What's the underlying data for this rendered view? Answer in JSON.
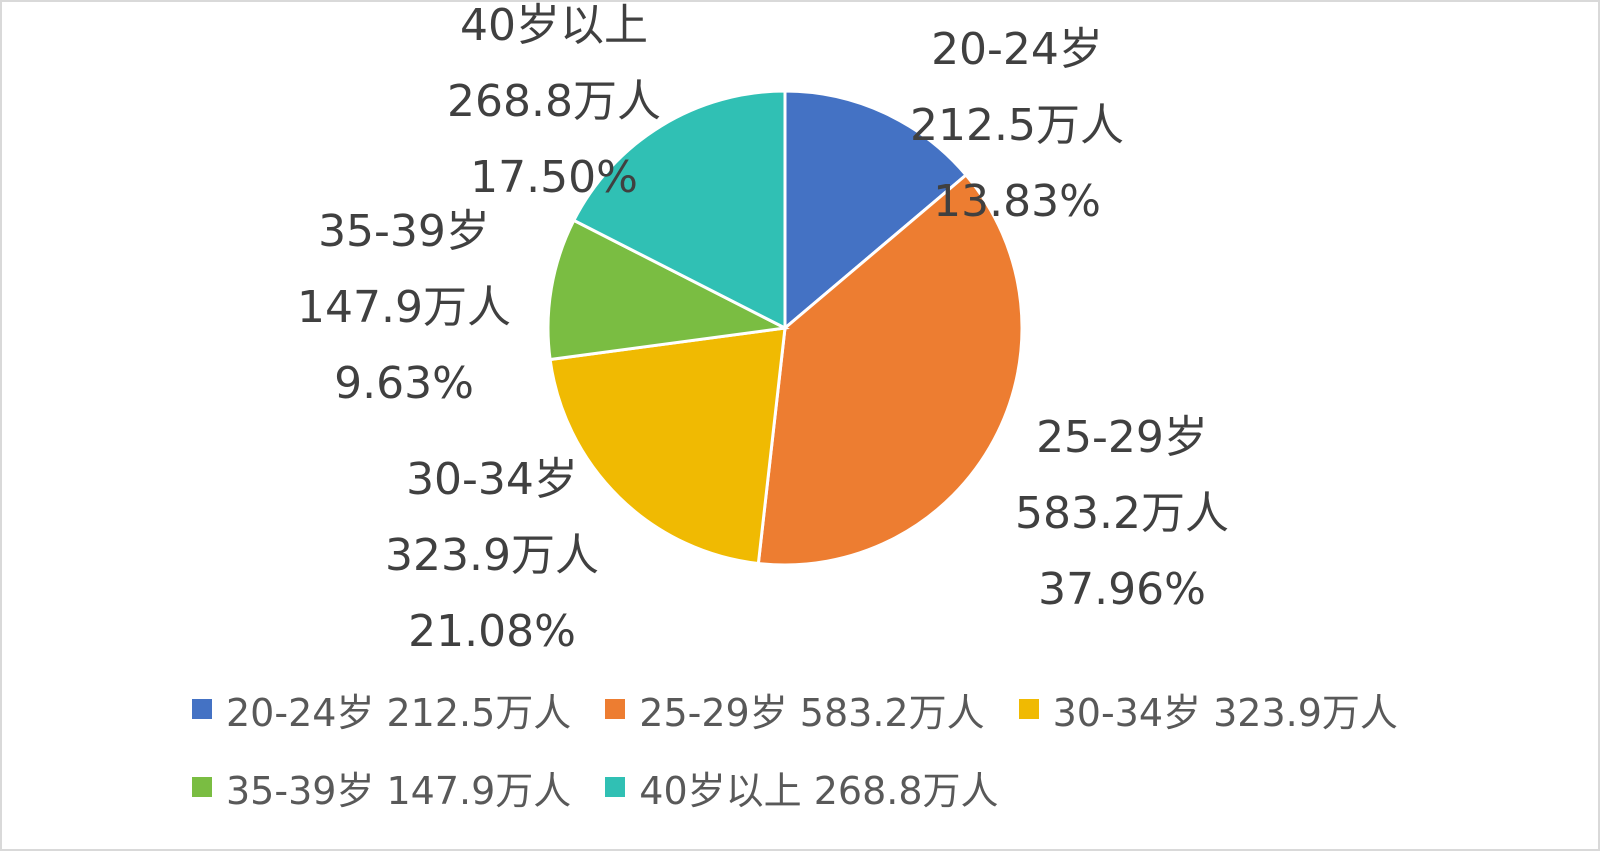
{
  "chart_data": {
    "type": "pie",
    "title": "",
    "unit": "万人",
    "slices": [
      {
        "category": "20-24岁",
        "value": 212.5,
        "value_label": "212.5万人",
        "percent_label": "13.83%",
        "legend": "20-24岁 212.5万人",
        "color": "#4472C4"
      },
      {
        "category": "25-29岁",
        "value": 583.2,
        "value_label": "583.2万人",
        "percent_label": "37.96%",
        "legend": "25-29岁 583.2万人",
        "color": "#ED7D31"
      },
      {
        "category": "30-34岁",
        "value": 323.9,
        "value_label": "323.9万人",
        "percent_label": "21.08%",
        "legend": "30-34岁 323.9万人",
        "color": "#F0BA02"
      },
      {
        "category": "35-39岁",
        "value": 147.9,
        "value_label": "147.9万人",
        "percent_label": "9.63%",
        "legend": "35-39岁 147.9万人",
        "color": "#7ABD42"
      },
      {
        "category": "40岁以上",
        "value": 268.8,
        "value_label": "268.8万人",
        "percent_label": "17.50%",
        "legend": "40岁以上 268.8万人",
        "color": "#30C0B4"
      }
    ],
    "start_angle": "12 o'clock",
    "direction": "clockwise",
    "legend_position": "bottom"
  }
}
